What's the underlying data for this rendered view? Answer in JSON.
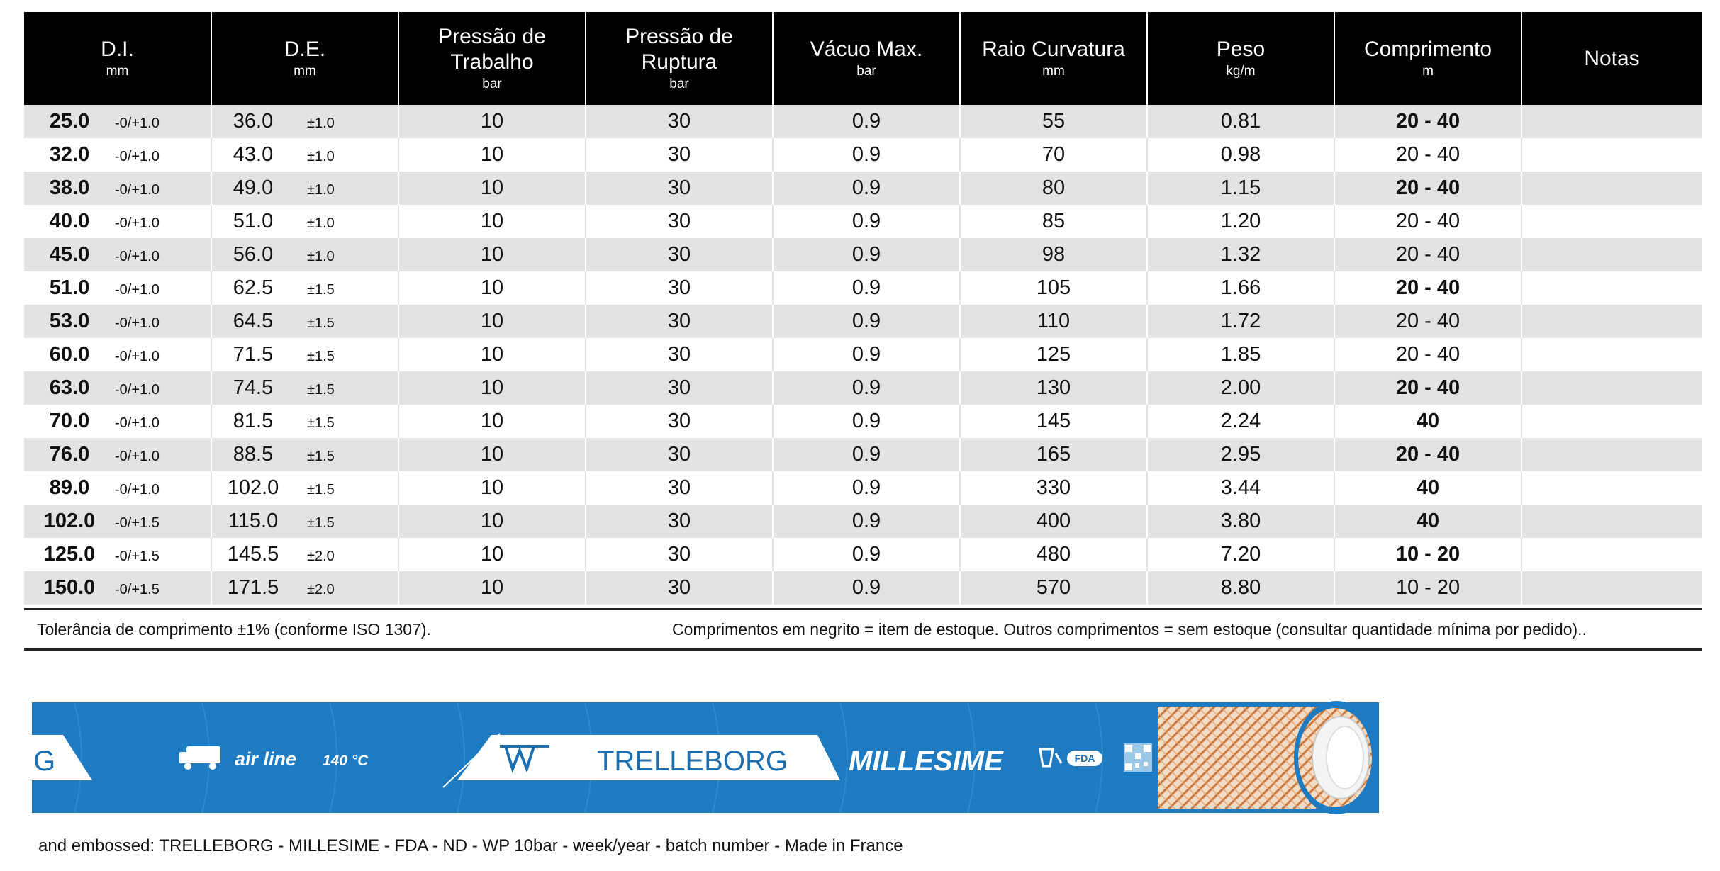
{
  "table": {
    "headers": {
      "di": {
        "main": "D.I.",
        "unit": "mm"
      },
      "de": {
        "main": "D.E.",
        "unit": "mm"
      },
      "wp": {
        "line1": "Pressão de",
        "line2": "Trabalho",
        "unit": "bar"
      },
      "bp": {
        "line1": "Pressão de",
        "line2": "Ruptura",
        "unit": "bar"
      },
      "vac": {
        "main": "Vácuo Max.",
        "unit": "bar"
      },
      "radius": {
        "main": "Raio Curvatura",
        "unit": "mm"
      },
      "weight": {
        "main": "Peso",
        "unit": "kg/m"
      },
      "length": {
        "main": "Comprimento",
        "unit": "m"
      },
      "notes": {
        "main": "Notas"
      }
    },
    "rows": [
      {
        "di": "25.0",
        "di_tol": "-0/+1.0",
        "de": "36.0",
        "de_tol": "±1.0",
        "wp": "10",
        "bp": "30",
        "vac": "0.9",
        "radius": "55",
        "weight": "0.81",
        "length": "20 - 40",
        "length_bold": true,
        "notes": ""
      },
      {
        "di": "32.0",
        "di_tol": "-0/+1.0",
        "de": "43.0",
        "de_tol": "±1.0",
        "wp": "10",
        "bp": "30",
        "vac": "0.9",
        "radius": "70",
        "weight": "0.98",
        "length": "20 - 40",
        "length_bold": false,
        "notes": ""
      },
      {
        "di": "38.0",
        "di_tol": "-0/+1.0",
        "de": "49.0",
        "de_tol": "±1.0",
        "wp": "10",
        "bp": "30",
        "vac": "0.9",
        "radius": "80",
        "weight": "1.15",
        "length": "20 - 40",
        "length_bold": true,
        "notes": ""
      },
      {
        "di": "40.0",
        "di_tol": "-0/+1.0",
        "de": "51.0",
        "de_tol": "±1.0",
        "wp": "10",
        "bp": "30",
        "vac": "0.9",
        "radius": "85",
        "weight": "1.20",
        "length": "20 - 40",
        "length_bold": false,
        "notes": ""
      },
      {
        "di": "45.0",
        "di_tol": "-0/+1.0",
        "de": "56.0",
        "de_tol": "±1.0",
        "wp": "10",
        "bp": "30",
        "vac": "0.9",
        "radius": "98",
        "weight": "1.32",
        "length": "20 - 40",
        "length_bold": false,
        "notes": ""
      },
      {
        "di": "51.0",
        "di_tol": "-0/+1.0",
        "de": "62.5",
        "de_tol": "±1.5",
        "wp": "10",
        "bp": "30",
        "vac": "0.9",
        "radius": "105",
        "weight": "1.66",
        "length": "20 - 40",
        "length_bold": true,
        "notes": ""
      },
      {
        "di": "53.0",
        "di_tol": "-0/+1.0",
        "de": "64.5",
        "de_tol": "±1.5",
        "wp": "10",
        "bp": "30",
        "vac": "0.9",
        "radius": "110",
        "weight": "1.72",
        "length": "20 - 40",
        "length_bold": false,
        "notes": ""
      },
      {
        "di": "60.0",
        "di_tol": "-0/+1.0",
        "de": "71.5",
        "de_tol": "±1.5",
        "wp": "10",
        "bp": "30",
        "vac": "0.9",
        "radius": "125",
        "weight": "1.85",
        "length": "20 - 40",
        "length_bold": false,
        "notes": ""
      },
      {
        "di": "63.0",
        "di_tol": "-0/+1.0",
        "de": "74.5",
        "de_tol": "±1.5",
        "wp": "10",
        "bp": "30",
        "vac": "0.9",
        "radius": "130",
        "weight": "2.00",
        "length": "20 - 40",
        "length_bold": true,
        "notes": ""
      },
      {
        "di": "70.0",
        "di_tol": "-0/+1.0",
        "de": "81.5",
        "de_tol": "±1.5",
        "wp": "10",
        "bp": "30",
        "vac": "0.9",
        "radius": "145",
        "weight": "2.24",
        "length": "40",
        "length_bold": true,
        "notes": ""
      },
      {
        "di": "76.0",
        "di_tol": "-0/+1.0",
        "de": "88.5",
        "de_tol": "±1.5",
        "wp": "10",
        "bp": "30",
        "vac": "0.9",
        "radius": "165",
        "weight": "2.95",
        "length": "20 - 40",
        "length_bold": true,
        "notes": ""
      },
      {
        "di": "89.0",
        "di_tol": "-0/+1.0",
        "de": "102.0",
        "de_tol": "±1.5",
        "wp": "10",
        "bp": "30",
        "vac": "0.9",
        "radius": "330",
        "weight": "3.44",
        "length": "40",
        "length_bold": true,
        "notes": ""
      },
      {
        "di": "102.0",
        "di_tol": "-0/+1.5",
        "de": "115.0",
        "de_tol": "±1.5",
        "wp": "10",
        "bp": "30",
        "vac": "0.9",
        "radius": "400",
        "weight": "3.80",
        "length": "40",
        "length_bold": true,
        "notes": ""
      },
      {
        "di": "125.0",
        "di_tol": "-0/+1.5",
        "de": "145.5",
        "de_tol": "±2.0",
        "wp": "10",
        "bp": "30",
        "vac": "0.9",
        "radius": "480",
        "weight": "7.20",
        "length": "10 - 20",
        "length_bold": true,
        "notes": ""
      },
      {
        "di": "150.0",
        "di_tol": "-0/+1.5",
        "de": "171.5",
        "de_tol": "±2.0",
        "wp": "10",
        "bp": "30",
        "vac": "0.9",
        "radius": "570",
        "weight": "8.80",
        "length": "10 - 20",
        "length_bold": false,
        "notes": ""
      }
    ]
  },
  "footnotes": {
    "left": "Tolerância de comprimento ±1% (conforme ISO 1307).",
    "right": "Comprimentos em negrito = item de estoque. Outros comprimentos = sem estoque (consultar quantidade mínima por pedido).."
  },
  "hose": {
    "colors": {
      "body": "#1f7bc1",
      "stripe": "#ffffff",
      "braid": "#d9905a",
      "label_text": "#1c6fb0"
    },
    "cut_text": "G",
    "air_line": "air line",
    "temperature": "140 °C",
    "brand": "TRELLEBORG",
    "product": "MILLESIME",
    "fda_badge": "FDA",
    "icons": [
      "truck-icon",
      "trelleborg-logo-icon",
      "food-glass-icon",
      "fda-badge-icon",
      "qr-code-icon"
    ]
  },
  "caption": "and embossed: TRELLEBORG - MILLESIME - FDA - ND - WP 10bar - week/year - batch number - Made in France"
}
